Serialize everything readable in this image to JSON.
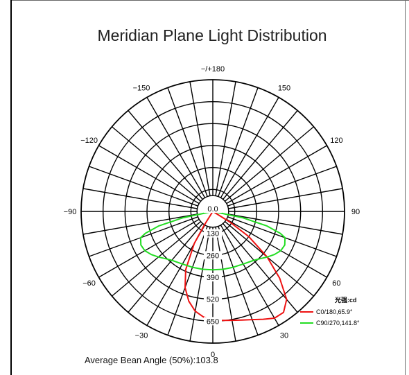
{
  "chart_data": {
    "type": "polar",
    "title": "Meridian Plane Light Distribution",
    "angle_ticks": [
      {
        "angle": 180,
        "label": "−/+180"
      },
      {
        "angle": 150,
        "label": "150"
      },
      {
        "angle": 120,
        "label": "120"
      },
      {
        "angle": 90,
        "label": "90"
      },
      {
        "angle": 60,
        "label": "60"
      },
      {
        "angle": 30,
        "label": "30"
      },
      {
        "angle": 0,
        "label": "0"
      },
      {
        "angle": -30,
        "label": "−30"
      },
      {
        "angle": -60,
        "label": "−60"
      },
      {
        "angle": -90,
        "label": "−90"
      },
      {
        "angle": -120,
        "label": "−120"
      },
      {
        "angle": -150,
        "label": "−150"
      }
    ],
    "radial_ticks": [
      0,
      130,
      260,
      390,
      520,
      650
    ],
    "radial_tick_labels": [
      "0.0",
      "130",
      "260",
      "390",
      "520",
      "650"
    ],
    "rmax": 780,
    "grid_step_deg": 10,
    "legend_title": "光强:cd",
    "series": [
      {
        "name": "C0/180,65.9°",
        "color": "#ee1111",
        "points": [
          {
            "angle": -34,
            "r": 0
          },
          {
            "angle": -32,
            "r": 100
          },
          {
            "angle": -30,
            "r": 220
          },
          {
            "angle": -25,
            "r": 380
          },
          {
            "angle": -20,
            "r": 480
          },
          {
            "angle": -15,
            "r": 550
          },
          {
            "angle": -10,
            "r": 600
          },
          {
            "angle": -5,
            "r": 628
          },
          {
            "angle": 0,
            "r": 640
          },
          {
            "angle": 5,
            "r": 648
          },
          {
            "angle": 10,
            "r": 655
          },
          {
            "angle": 15,
            "r": 666
          },
          {
            "angle": 20,
            "r": 682
          },
          {
            "angle": 25,
            "r": 705
          },
          {
            "angle": 30,
            "r": 730
          },
          {
            "angle": 35,
            "r": 730
          },
          {
            "angle": 40,
            "r": 680
          },
          {
            "angle": 45,
            "r": 560
          },
          {
            "angle": 50,
            "r": 420
          },
          {
            "angle": 55,
            "r": 260
          },
          {
            "angle": 58,
            "r": 120
          },
          {
            "angle": 60,
            "r": 0
          }
        ]
      },
      {
        "name": "C90/270,141.8°",
        "color": "#22dd22",
        "points": [
          {
            "angle": -80,
            "r": 0
          },
          {
            "angle": -78,
            "r": 180
          },
          {
            "angle": -75,
            "r": 330
          },
          {
            "angle": -72,
            "r": 420
          },
          {
            "angle": -70,
            "r": 455
          },
          {
            "angle": -65,
            "r": 470
          },
          {
            "angle": -60,
            "r": 465
          },
          {
            "angle": -55,
            "r": 445
          },
          {
            "angle": -50,
            "r": 420
          },
          {
            "angle": -45,
            "r": 396
          },
          {
            "angle": -40,
            "r": 378
          },
          {
            "angle": -30,
            "r": 360
          },
          {
            "angle": -20,
            "r": 352
          },
          {
            "angle": -10,
            "r": 348
          },
          {
            "angle": 0,
            "r": 346
          },
          {
            "angle": 10,
            "r": 348
          },
          {
            "angle": 20,
            "r": 352
          },
          {
            "angle": 30,
            "r": 360
          },
          {
            "angle": 40,
            "r": 378
          },
          {
            "angle": 45,
            "r": 396
          },
          {
            "angle": 50,
            "r": 420
          },
          {
            "angle": 55,
            "r": 445
          },
          {
            "angle": 60,
            "r": 465
          },
          {
            "angle": 65,
            "r": 470
          },
          {
            "angle": 70,
            "r": 455
          },
          {
            "angle": 72,
            "r": 420
          },
          {
            "angle": 75,
            "r": 330
          },
          {
            "angle": 78,
            "r": 180
          },
          {
            "angle": 80,
            "r": 0
          }
        ]
      }
    ]
  },
  "footer_text": "Average Bean Angle (50%):103.8",
  "colors": {
    "grid": "#000000",
    "background": "#ffffff"
  }
}
